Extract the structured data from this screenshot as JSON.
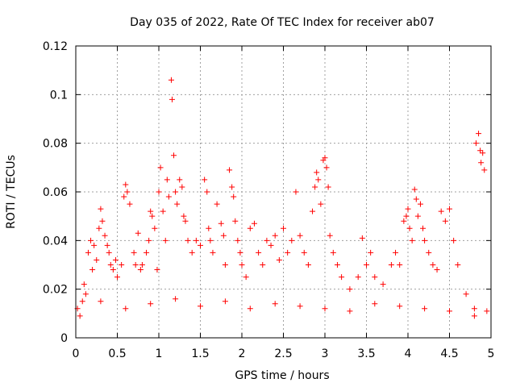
{
  "chart_data": {
    "type": "scatter",
    "title": "Day 035 of 2022, Rate Of TEC Index for receiver ab07",
    "xlabel": "GPS time / hours",
    "ylabel": "ROTI / TECUs",
    "xlim": [
      0,
      5
    ],
    "ylim": [
      0,
      0.12
    ],
    "grid": true,
    "marker": "+",
    "color": "#ff0000",
    "x_ticks": [
      {
        "value": 0,
        "label": "0"
      },
      {
        "value": 0.5,
        "label": "0.5"
      },
      {
        "value": 1,
        "label": "1"
      },
      {
        "value": 1.5,
        "label": "1.5"
      },
      {
        "value": 2,
        "label": "2"
      },
      {
        "value": 2.5,
        "label": "2.5"
      },
      {
        "value": 3,
        "label": "3"
      },
      {
        "value": 3.5,
        "label": "3.5"
      },
      {
        "value": 4,
        "label": "4"
      },
      {
        "value": 4.5,
        "label": "4.5"
      },
      {
        "value": 5,
        "label": "5"
      }
    ],
    "y_ticks": [
      {
        "value": 0,
        "label": "0"
      },
      {
        "value": 0.02,
        "label": "0.02"
      },
      {
        "value": 0.04,
        "label": "0.04"
      },
      {
        "value": 0.06,
        "label": "0.06"
      },
      {
        "value": 0.08,
        "label": "0.08"
      },
      {
        "value": 0.1,
        "label": "0.1"
      },
      {
        "value": 0.12,
        "label": "0.12"
      }
    ],
    "points": [
      [
        0.02,
        0.012
      ],
      [
        0.05,
        0.009
      ],
      [
        0.08,
        0.015
      ],
      [
        0.1,
        0.022
      ],
      [
        0.12,
        0.018
      ],
      [
        0.15,
        0.035
      ],
      [
        0.18,
        0.04
      ],
      [
        0.2,
        0.028
      ],
      [
        0.22,
        0.038
      ],
      [
        0.25,
        0.032
      ],
      [
        0.28,
        0.045
      ],
      [
        0.3,
        0.053
      ],
      [
        0.32,
        0.048
      ],
      [
        0.35,
        0.042
      ],
      [
        0.38,
        0.038
      ],
      [
        0.4,
        0.035
      ],
      [
        0.42,
        0.03
      ],
      [
        0.45,
        0.028
      ],
      [
        0.48,
        0.032
      ],
      [
        0.5,
        0.025
      ],
      [
        0.55,
        0.03
      ],
      [
        0.58,
        0.058
      ],
      [
        0.6,
        0.063
      ],
      [
        0.62,
        0.06
      ],
      [
        0.65,
        0.055
      ],
      [
        0.7,
        0.035
      ],
      [
        0.72,
        0.03
      ],
      [
        0.75,
        0.043
      ],
      [
        0.78,
        0.028
      ],
      [
        0.8,
        0.03
      ],
      [
        0.85,
        0.035
      ],
      [
        0.88,
        0.04
      ],
      [
        0.9,
        0.052
      ],
      [
        0.92,
        0.05
      ],
      [
        0.95,
        0.045
      ],
      [
        0.98,
        0.028
      ],
      [
        1.0,
        0.06
      ],
      [
        1.02,
        0.07
      ],
      [
        1.05,
        0.052
      ],
      [
        1.08,
        0.04
      ],
      [
        1.1,
        0.065
      ],
      [
        1.12,
        0.058
      ],
      [
        1.15,
        0.106
      ],
      [
        1.16,
        0.098
      ],
      [
        1.18,
        0.075
      ],
      [
        1.2,
        0.06
      ],
      [
        1.22,
        0.055
      ],
      [
        1.25,
        0.065
      ],
      [
        1.28,
        0.062
      ],
      [
        1.3,
        0.05
      ],
      [
        1.32,
        0.048
      ],
      [
        1.35,
        0.04
      ],
      [
        1.4,
        0.035
      ],
      [
        1.45,
        0.04
      ],
      [
        1.5,
        0.038
      ],
      [
        1.55,
        0.065
      ],
      [
        1.58,
        0.06
      ],
      [
        1.6,
        0.045
      ],
      [
        1.62,
        0.04
      ],
      [
        1.65,
        0.035
      ],
      [
        1.7,
        0.055
      ],
      [
        1.75,
        0.047
      ],
      [
        1.78,
        0.042
      ],
      [
        1.8,
        0.03
      ],
      [
        1.85,
        0.069
      ],
      [
        1.88,
        0.062
      ],
      [
        1.9,
        0.058
      ],
      [
        1.92,
        0.048
      ],
      [
        1.95,
        0.04
      ],
      [
        1.98,
        0.035
      ],
      [
        2.0,
        0.03
      ],
      [
        2.05,
        0.025
      ],
      [
        2.1,
        0.045
      ],
      [
        2.15,
        0.047
      ],
      [
        2.2,
        0.035
      ],
      [
        2.25,
        0.03
      ],
      [
        2.3,
        0.04
      ],
      [
        2.35,
        0.038
      ],
      [
        2.4,
        0.042
      ],
      [
        2.45,
        0.032
      ],
      [
        2.5,
        0.045
      ],
      [
        2.55,
        0.035
      ],
      [
        2.6,
        0.04
      ],
      [
        2.65,
        0.06
      ],
      [
        2.7,
        0.042
      ],
      [
        2.75,
        0.035
      ],
      [
        2.8,
        0.03
      ],
      [
        2.85,
        0.052
      ],
      [
        2.88,
        0.062
      ],
      [
        2.9,
        0.068
      ],
      [
        2.92,
        0.065
      ],
      [
        2.95,
        0.055
      ],
      [
        2.98,
        0.073
      ],
      [
        3.0,
        0.074
      ],
      [
        3.02,
        0.07
      ],
      [
        3.04,
        0.062
      ],
      [
        3.06,
        0.042
      ],
      [
        3.1,
        0.035
      ],
      [
        3.15,
        0.03
      ],
      [
        3.2,
        0.025
      ],
      [
        3.3,
        0.02
      ],
      [
        3.4,
        0.025
      ],
      [
        3.45,
        0.041
      ],
      [
        3.5,
        0.03
      ],
      [
        3.55,
        0.035
      ],
      [
        3.6,
        0.025
      ],
      [
        3.7,
        0.022
      ],
      [
        3.8,
        0.03
      ],
      [
        3.85,
        0.035
      ],
      [
        3.9,
        0.03
      ],
      [
        3.95,
        0.048
      ],
      [
        3.98,
        0.05
      ],
      [
        4.0,
        0.053
      ],
      [
        4.02,
        0.045
      ],
      [
        4.05,
        0.04
      ],
      [
        4.08,
        0.061
      ],
      [
        4.1,
        0.057
      ],
      [
        4.12,
        0.05
      ],
      [
        4.15,
        0.055
      ],
      [
        4.18,
        0.045
      ],
      [
        4.2,
        0.04
      ],
      [
        4.25,
        0.035
      ],
      [
        4.3,
        0.03
      ],
      [
        4.35,
        0.028
      ],
      [
        4.4,
        0.052
      ],
      [
        4.45,
        0.048
      ],
      [
        4.5,
        0.053
      ],
      [
        4.55,
        0.04
      ],
      [
        4.6,
        0.03
      ],
      [
        4.7,
        0.018
      ],
      [
        4.8,
        0.012
      ],
      [
        4.82,
        0.08
      ],
      [
        4.85,
        0.084
      ],
      [
        4.87,
        0.077
      ],
      [
        4.88,
        0.072
      ],
      [
        4.9,
        0.076
      ],
      [
        4.92,
        0.069
      ],
      [
        4.95,
        0.011
      ],
      [
        0.3,
        0.015
      ],
      [
        0.6,
        0.012
      ],
      [
        0.9,
        0.014
      ],
      [
        1.2,
        0.016
      ],
      [
        1.5,
        0.013
      ],
      [
        1.8,
        0.015
      ],
      [
        2.1,
        0.012
      ],
      [
        2.4,
        0.014
      ],
      [
        2.7,
        0.013
      ],
      [
        3.0,
        0.012
      ],
      [
        3.3,
        0.011
      ],
      [
        3.6,
        0.014
      ],
      [
        3.9,
        0.013
      ],
      [
        4.2,
        0.012
      ],
      [
        4.5,
        0.011
      ],
      [
        4.8,
        0.009
      ]
    ]
  }
}
